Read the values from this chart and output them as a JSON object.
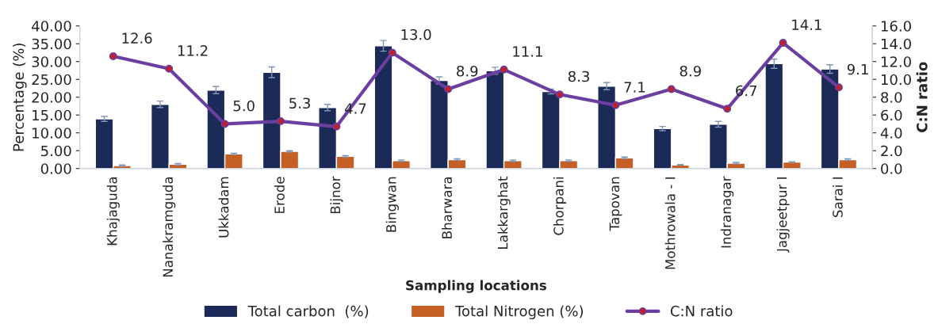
{
  "chart_data": {
    "type": "bar",
    "xlabel": "Sampling locations",
    "ylabel": "Percentage (%)",
    "y2label": "C:N ratio",
    "categories": [
      "Khajaguda",
      "Nanakramguda",
      "Ukkadam",
      "Erode",
      "Bijnor",
      "Bingwan",
      "Bharwara",
      "Lakkarghat",
      "Chorpani",
      "Tapovan",
      "Mothrowala - I",
      "Indranagar",
      "Jagjeetpur I",
      "Sarai I"
    ],
    "series": [
      {
        "name": "Total carbon  (%)",
        "color": "#1b2a57",
        "values": [
          13.9,
          18.0,
          22.0,
          27.0,
          17.1,
          34.4,
          24.7,
          27.4,
          21.6,
          23.1,
          11.2,
          12.4,
          29.4,
          27.9
        ],
        "errors": [
          0.7,
          0.9,
          1.0,
          1.5,
          0.9,
          1.5,
          1.0,
          1.0,
          0.7,
          1.0,
          0.6,
          0.8,
          1.3,
          1.2
        ]
      },
      {
        "name": "Total Nitrogen (%)",
        "color": "#c55f24",
        "values": [
          0.8,
          1.2,
          4.1,
          4.8,
          3.4,
          2.2,
          2.5,
          2.2,
          2.2,
          3.0,
          1.0,
          1.5,
          1.8,
          2.5
        ],
        "errors": [
          0.2,
          0.2,
          0.2,
          0.2,
          0.2,
          0.2,
          0.2,
          0.2,
          0.2,
          0.2,
          0.1,
          0.2,
          0.1,
          0.2
        ]
      },
      {
        "name": "C:N ratio",
        "type": "line",
        "axis": "y2",
        "color": "#6a3fa0",
        "marker": "circle",
        "data_labels": true,
        "values": [
          12.6,
          11.2,
          5.0,
          5.3,
          4.7,
          13.0,
          8.9,
          11.1,
          8.3,
          7.1,
          8.9,
          6.7,
          14.1,
          9.1
        ],
        "value_labels": [
          "12.6",
          "11.2",
          "5.0",
          "5.3",
          "4.7",
          "13.0",
          "8.9",
          "11.1",
          "8.3",
          "7.1",
          "8.9",
          "6.7",
          "14.1",
          "9.1"
        ]
      }
    ],
    "ylim": [
      0,
      40
    ],
    "yticks": [
      {
        "value": 0,
        "label": "0.00"
      },
      {
        "value": 5,
        "label": "5.00"
      },
      {
        "value": 10,
        "label": "10.00"
      },
      {
        "value": 15,
        "label": "15.00"
      },
      {
        "value": 20,
        "label": "20.00"
      },
      {
        "value": 25,
        "label": "25.00"
      },
      {
        "value": 30,
        "label": "30.00"
      },
      {
        "value": 35,
        "label": "35.00"
      },
      {
        "value": 40,
        "label": "40.00"
      }
    ],
    "y2lim": [
      0,
      16
    ],
    "y2ticks": [
      {
        "value": 0,
        "label": "0.0"
      },
      {
        "value": 2,
        "label": "2.0"
      },
      {
        "value": 4,
        "label": "4.0"
      },
      {
        "value": 6,
        "label": "6.0"
      },
      {
        "value": 8,
        "label": "8.0"
      },
      {
        "value": 10,
        "label": "10.0"
      },
      {
        "value": 12,
        "label": "12.0"
      },
      {
        "value": 14,
        "label": "14.0"
      },
      {
        "value": 16,
        "label": "16.0"
      }
    ],
    "grid": false,
    "legend": "bottom"
  }
}
